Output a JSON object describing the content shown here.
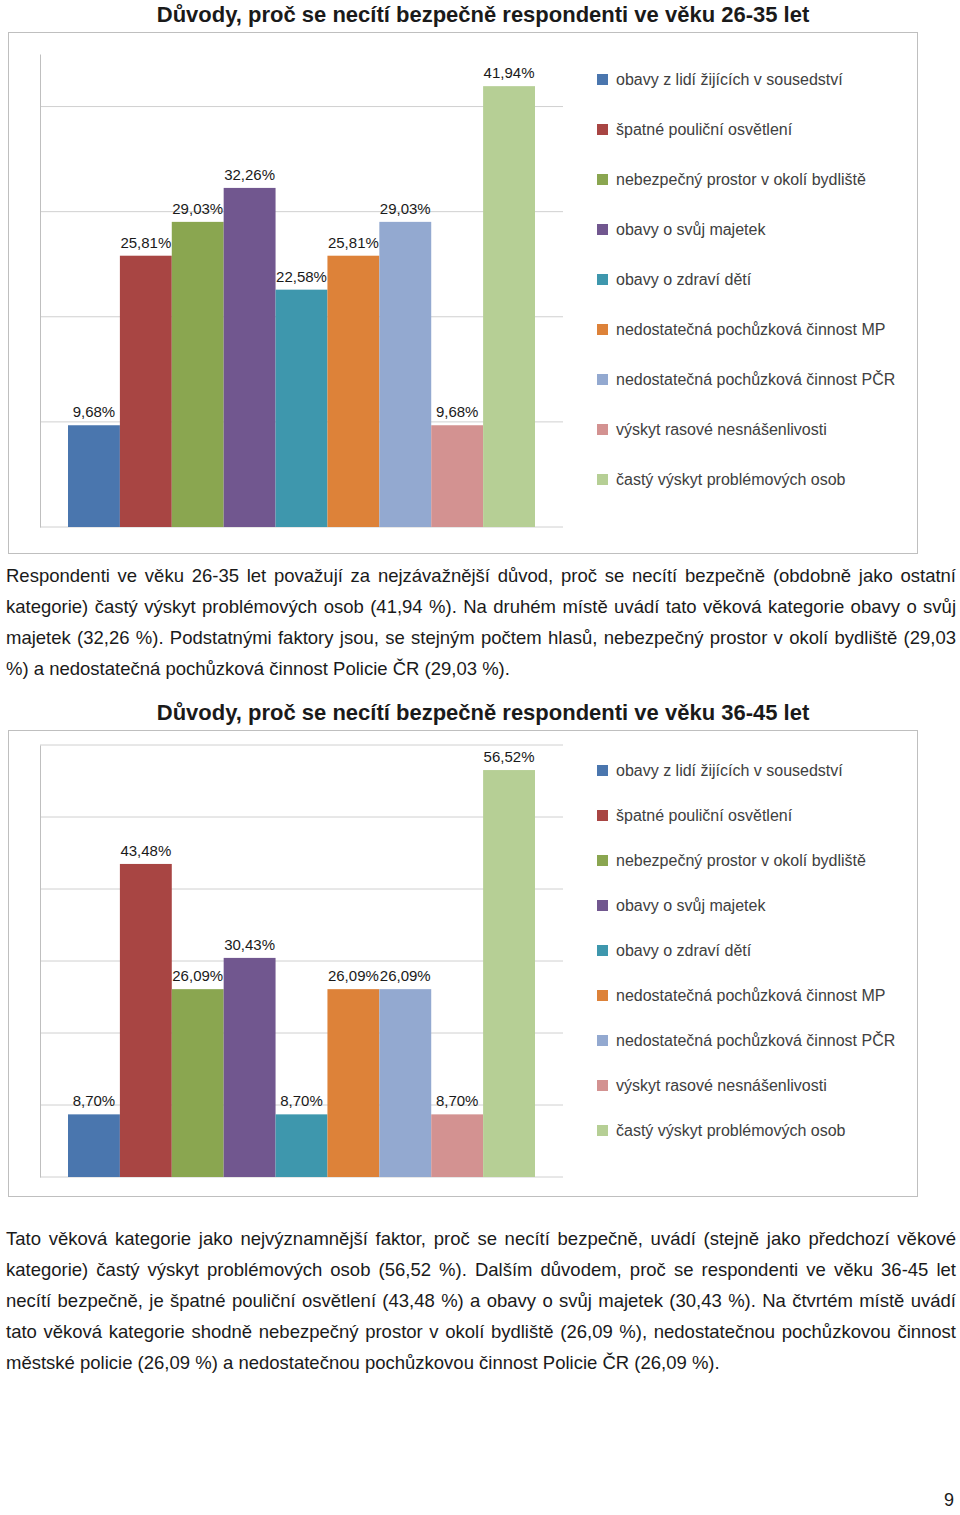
{
  "chart_data": [
    {
      "type": "bar",
      "title": "Důvody, proč se necítí bezpečně respondenti ve věku 26-35 let",
      "categories": [
        "obavy z lidí žijících v sousedství",
        "špatné pouliční osvětlení",
        "nebezpečný prostor v okolí bydliště",
        "obavy o svůj majetek",
        "obavy o zdraví dětí",
        "nedostatečná pochůzková činnost MP",
        "nedostatečná pochůzková činnost PČR",
        "výskyt rasové nesnášenlivosti",
        "častý výskyt problémových osob"
      ],
      "values": [
        9.68,
        25.81,
        29.03,
        32.26,
        22.58,
        25.81,
        29.03,
        9.68,
        41.94
      ],
      "value_labels": [
        "9,68%",
        "25,81%",
        "29,03%",
        "32,26%",
        "22,58%",
        "25,81%",
        "29,03%",
        "9,68%",
        "41,94%"
      ],
      "colors": [
        "#4a76ae",
        "#a84543",
        "#8aa650",
        "#71578f",
        "#3e97ad",
        "#dd8239",
        "#93a9d0",
        "#d39291",
        "#b6cf95"
      ],
      "ylim": [
        0,
        45
      ],
      "yticks": [
        0,
        10,
        20,
        30,
        40
      ],
      "grid": true,
      "data_labels": true,
      "tick_labels": false,
      "legend": "right"
    },
    {
      "type": "bar",
      "title": "Důvody, proč se necítí bezpečně respondenti ve věku 36-45 let",
      "categories": [
        "obavy z lidí žijících v sousedství",
        "špatné pouliční osvětlení",
        "nebezpečný prostor v okolí bydliště",
        "obavy o svůj majetek",
        "obavy o zdraví dětí",
        "nedostatečná pochůzková činnost MP",
        "nedostatečná pochůzková činnost PČR",
        "výskyt rasové nesnášenlivosti",
        "častý výskyt problémových osob"
      ],
      "values": [
        8.7,
        43.48,
        26.09,
        30.43,
        8.7,
        26.09,
        26.09,
        8.7,
        56.52
      ],
      "value_labels": [
        "8,70%",
        "43,48%",
        "26,09%",
        "30,43%",
        "8,70%",
        "26,09%",
        "26,09%",
        "8,70%",
        "56,52%"
      ],
      "colors": [
        "#4a76ae",
        "#a84543",
        "#8aa650",
        "#71578f",
        "#3e97ad",
        "#dd8239",
        "#93a9d0",
        "#d39291",
        "#b6cf95"
      ],
      "ylim": [
        0,
        60
      ],
      "yticks": [
        0,
        10,
        20,
        30,
        40,
        50,
        60
      ],
      "grid": true,
      "data_labels": true,
      "tick_labels": false,
      "legend": "right"
    }
  ],
  "text": {
    "paragraphs": [
      "Respondenti ve věku 26-35 let považují za nejzávažnější důvod, proč se necítí bezpečně (obdobně jako ostatní kategorie) častý výskyt problémových osob (41,94 %). Na druhém místě uvádí tato věková kategorie obavy o svůj majetek (32,26 %). Podstatnými faktory jsou, se stejným počtem hlasů, nebezpečný prostor v okolí bydliště (29,03 %) a nedostatečná pochůzková činnost Policie ČR (29,03 %).",
      "Tato věková kategorie jako nejvýznamnější faktor, proč se necítí bezpečně, uvádí (stejně jako předchozí věkové kategorie) častý výskyt problémových osob (56,52 %). Dalším důvodem, proč se respondenti ve věku 36-45 let necítí bezpečně, je špatné pouliční osvětlení (43,48 %) a obavy o svůj majetek (30,43 %). Na čtvrtém místě uvádí tato věková kategorie shodně nebezpečný prostor v okolí bydliště (26,09 %), nedostatečnou pochůzkovou činnost městské policie (26,09 %) a nedostatečnou pochůzkovou činnost Policie ČR (26,09 %)."
    ],
    "page_number": "9"
  }
}
